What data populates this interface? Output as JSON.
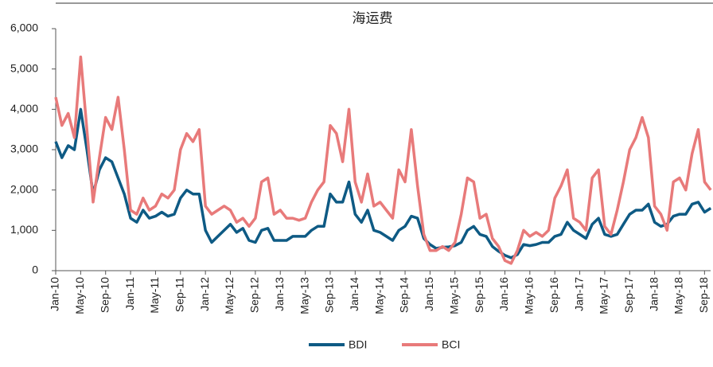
{
  "chart_data": {
    "type": "line",
    "title": "海运费",
    "categories": [
      "Jan-10",
      null,
      null,
      null,
      "May-10",
      null,
      null,
      null,
      "Sep-10",
      null,
      null,
      null,
      "Jan-11",
      null,
      null,
      null,
      "May-11",
      null,
      null,
      null,
      "Sep-11",
      null,
      null,
      null,
      "Jan-12",
      null,
      null,
      null,
      "May-12",
      null,
      null,
      null,
      "Sep-12",
      null,
      null,
      null,
      "Jan-13",
      null,
      null,
      null,
      "May-13",
      null,
      null,
      null,
      "Sep-13",
      null,
      null,
      null,
      "Jan-14",
      null,
      null,
      null,
      "May-14",
      null,
      null,
      null,
      "Sep-14",
      null,
      null,
      null,
      "Jan-15",
      null,
      null,
      null,
      "May-15",
      null,
      null,
      null,
      "Sep-15",
      null,
      null,
      null,
      "Jan-16",
      null,
      null,
      null,
      "May-16",
      null,
      null,
      null,
      "Sep-16",
      null,
      null,
      null,
      "Jan-17",
      null,
      null,
      null,
      "May-17",
      null,
      null,
      null,
      "Sep-17",
      null,
      null,
      null,
      "Jan-18",
      null,
      null,
      null,
      "May-18",
      null,
      null,
      null,
      "Sep-18",
      null
    ],
    "series": [
      {
        "name": "BDI",
        "color": "#0e5a84",
        "values": [
          3200,
          2800,
          3100,
          3000,
          4000,
          3000,
          1900,
          2500,
          2800,
          2700,
          2300,
          1900,
          1300,
          1200,
          1500,
          1300,
          1350,
          1450,
          1350,
          1400,
          1800,
          2000,
          1900,
          1900,
          1000,
          700,
          850,
          1000,
          1150,
          950,
          1050,
          750,
          700,
          1000,
          1050,
          750,
          750,
          750,
          850,
          850,
          850,
          1000,
          1100,
          1100,
          1900,
          1700,
          1700,
          2200,
          1400,
          1200,
          1500,
          1000,
          950,
          850,
          750,
          1000,
          1100,
          1350,
          1300,
          800,
          650,
          550,
          580,
          590,
          620,
          700,
          1000,
          1100,
          900,
          850,
          600,
          480,
          380,
          320,
          400,
          650,
          620,
          650,
          700,
          700,
          850,
          900,
          1200,
          1000,
          900,
          800,
          1150,
          1300,
          900,
          850,
          900,
          1150,
          1400,
          1500,
          1500,
          1650,
          1200,
          1100,
          1150,
          1350,
          1400,
          1400,
          1650,
          1700,
          1450,
          1550
        ]
      },
      {
        "name": "BCI",
        "color": "#e87a7a",
        "values": [
          4300,
          3600,
          3900,
          3300,
          5300,
          3500,
          1700,
          2800,
          3800,
          3500,
          4300,
          3000,
          1500,
          1400,
          1800,
          1500,
          1600,
          1900,
          1800,
          2000,
          3000,
          3400,
          3200,
          3500,
          1600,
          1400,
          1500,
          1600,
          1500,
          1200,
          1300,
          1100,
          1300,
          2200,
          2300,
          1400,
          1500,
          1300,
          1300,
          1250,
          1300,
          1700,
          2000,
          2200,
          3600,
          3400,
          2700,
          4000,
          2200,
          1700,
          2400,
          1600,
          1700,
          1500,
          1300,
          2500,
          2200,
          3500,
          2100,
          900,
          500,
          500,
          600,
          500,
          700,
          1400,
          2300,
          2200,
          1300,
          1400,
          800,
          600,
          250,
          180,
          500,
          1000,
          850,
          950,
          850,
          1000,
          1800,
          2100,
          2500,
          1300,
          1200,
          1000,
          2300,
          2500,
          1100,
          900,
          1500,
          2200,
          3000,
          3300,
          3800,
          3300,
          1600,
          1400,
          1000,
          2200,
          2300,
          2000,
          2900,
          3500,
          2200,
          2000
        ]
      }
    ],
    "ylim": [
      0,
      6000
    ],
    "yticks": [
      0,
      {
        "value": 1000,
        "label": "1,000"
      },
      {
        "value": 2000,
        "label": "2,000"
      },
      {
        "value": 3000,
        "label": "3,000"
      },
      {
        "value": 4000,
        "label": "4,000"
      },
      {
        "value": 5000,
        "label": "5,000"
      },
      {
        "value": 6000,
        "label": "6,000"
      }
    ]
  }
}
